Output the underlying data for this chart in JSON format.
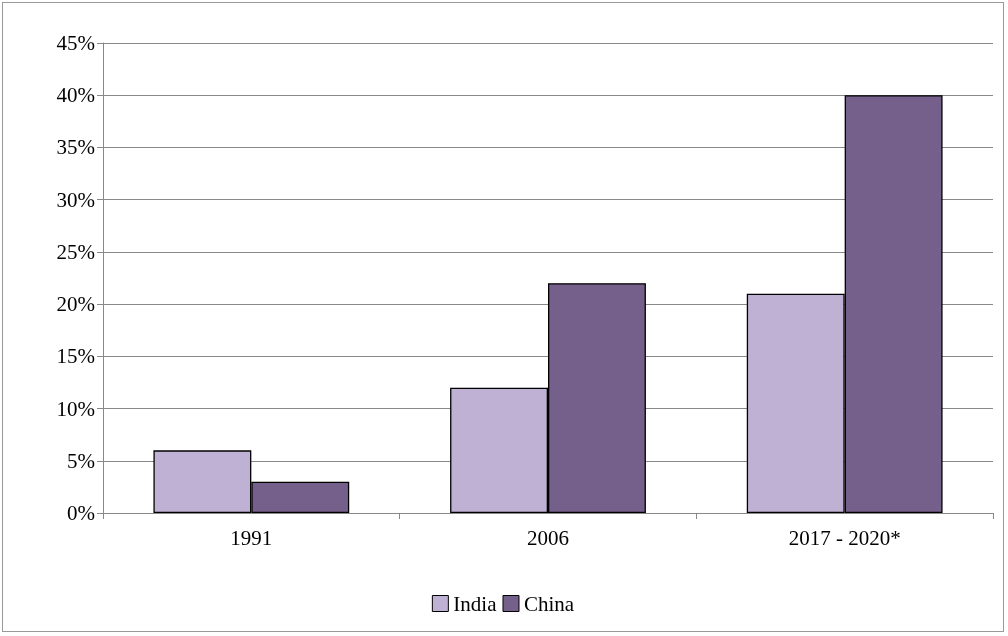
{
  "chart_data": {
    "type": "bar",
    "categories": [
      "1991",
      "2006",
      "2017 - 2020*"
    ],
    "series": [
      {
        "name": "India",
        "color": "#bfb1d3",
        "values": [
          6,
          12,
          21
        ]
      },
      {
        "name": "China",
        "color": "#75608b",
        "values": [
          3,
          22,
          40
        ]
      }
    ],
    "ylim": [
      0,
      45
    ],
    "yticks": [
      {
        "value": 0,
        "label": "0%"
      },
      {
        "value": 5,
        "label": "5%"
      },
      {
        "value": 10,
        "label": "10%"
      },
      {
        "value": 15,
        "label": "15%"
      },
      {
        "value": 20,
        "label": "20%"
      },
      {
        "value": 25,
        "label": "25%"
      },
      {
        "value": 30,
        "label": "30%"
      },
      {
        "value": 35,
        "label": "35%"
      },
      {
        "value": 40,
        "label": "40%"
      },
      {
        "value": 45,
        "label": "45%"
      }
    ],
    "grid": "y",
    "legend": "bottom"
  }
}
